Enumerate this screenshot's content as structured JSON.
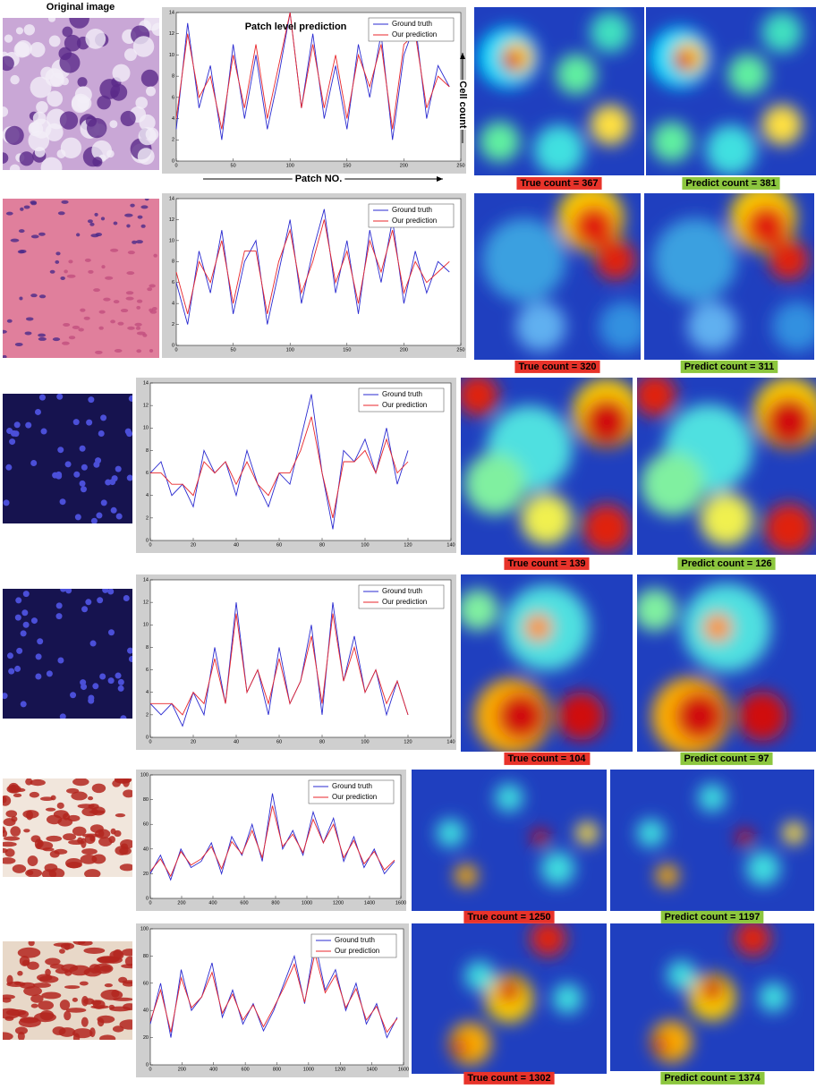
{
  "header_label": "Original image",
  "chart_data": [
    {
      "type": "line",
      "title": "Patch level prediction",
      "x_label": "Patch NO.",
      "y_label": "Cell count",
      "x": [
        0,
        10,
        20,
        30,
        40,
        50,
        60,
        70,
        80,
        90,
        100,
        110,
        120,
        130,
        140,
        150,
        160,
        170,
        180,
        190,
        200,
        210,
        220,
        230,
        240
      ],
      "xlim": [
        0,
        250
      ],
      "xticks": [
        0,
        50,
        100,
        150,
        200,
        250
      ],
      "ylim": [
        0,
        14
      ],
      "yticks": [
        0,
        2,
        4,
        6,
        8,
        10,
        12,
        14
      ],
      "series": [
        {
          "name": "Ground truth",
          "color": "#2a2ad0",
          "values": [
            3,
            13,
            5,
            9,
            2,
            11,
            4,
            10,
            3,
            8,
            14,
            5,
            12,
            4,
            9,
            3,
            11,
            6,
            12,
            2,
            10,
            13,
            4,
            9,
            7
          ]
        },
        {
          "name": "Our prediction",
          "color": "#e8262b",
          "values": [
            4,
            12,
            6,
            8,
            3,
            10,
            5,
            11,
            4,
            9,
            14,
            5,
            11,
            5,
            10,
            4,
            10,
            7,
            11,
            3,
            11,
            12,
            5,
            8,
            7
          ]
        }
      ]
    },
    {
      "type": "line",
      "x": [
        0,
        10,
        20,
        30,
        40,
        50,
        60,
        70,
        80,
        90,
        100,
        110,
        120,
        130,
        140,
        150,
        160,
        170,
        180,
        190,
        200,
        210,
        220,
        230,
        240
      ],
      "xlim": [
        0,
        250
      ],
      "xticks": [
        0,
        50,
        100,
        150,
        200,
        250
      ],
      "ylim": [
        0,
        14
      ],
      "yticks": [
        0,
        2,
        4,
        6,
        8,
        10,
        12,
        14
      ],
      "series": [
        {
          "name": "Ground truth",
          "color": "#2a2ad0",
          "values": [
            6,
            2,
            9,
            5,
            11,
            3,
            8,
            10,
            2,
            7,
            12,
            4,
            9,
            13,
            5,
            10,
            3,
            11,
            6,
            12,
            4,
            9,
            5,
            8,
            7
          ]
        },
        {
          "name": "Our prediction",
          "color": "#e8262b",
          "values": [
            7,
            3,
            8,
            6,
            10,
            4,
            9,
            9,
            3,
            8,
            11,
            5,
            8,
            12,
            6,
            9,
            4,
            10,
            7,
            11,
            5,
            8,
            6,
            7,
            8
          ]
        }
      ]
    },
    {
      "type": "line",
      "x": [
        0,
        5,
        10,
        15,
        20,
        25,
        30,
        35,
        40,
        45,
        50,
        55,
        60,
        65,
        70,
        75,
        80,
        85,
        90,
        95,
        100,
        105,
        110,
        115,
        120
      ],
      "xlim": [
        0,
        140
      ],
      "xticks": [
        0,
        20,
        40,
        60,
        80,
        100,
        120,
        140
      ],
      "ylim": [
        0,
        14
      ],
      "yticks": [
        0,
        2,
        4,
        6,
        8,
        10,
        12,
        14
      ],
      "series": [
        {
          "name": "Ground truth",
          "color": "#2a2ad0",
          "values": [
            6,
            7,
            4,
            5,
            3,
            8,
            6,
            7,
            4,
            8,
            5,
            3,
            6,
            5,
            9,
            13,
            6,
            1,
            8,
            7,
            9,
            6,
            10,
            5,
            8
          ]
        },
        {
          "name": "Our prediction",
          "color": "#e8262b",
          "values": [
            6,
            6,
            5,
            5,
            4,
            7,
            6,
            7,
            5,
            7,
            5,
            4,
            6,
            6,
            8,
            11,
            6,
            2,
            7,
            7,
            8,
            6,
            9,
            6,
            7
          ]
        }
      ]
    },
    {
      "type": "line",
      "x": [
        0,
        5,
        10,
        15,
        20,
        25,
        30,
        35,
        40,
        45,
        50,
        55,
        60,
        65,
        70,
        75,
        80,
        85,
        90,
        95,
        100,
        105,
        110,
        115,
        120
      ],
      "xlim": [
        0,
        140
      ],
      "xticks": [
        0,
        20,
        40,
        60,
        80,
        100,
        120,
        140
      ],
      "ylim": [
        0,
        14
      ],
      "yticks": [
        0,
        2,
        4,
        6,
        8,
        10,
        12,
        14
      ],
      "series": [
        {
          "name": "Ground truth",
          "color": "#2a2ad0",
          "values": [
            3,
            2,
            3,
            1,
            4,
            2,
            8,
            3,
            12,
            4,
            6,
            2,
            8,
            3,
            5,
            10,
            2,
            12,
            5,
            9,
            4,
            6,
            2,
            5,
            2
          ]
        },
        {
          "name": "Our prediction",
          "color": "#e8262b",
          "values": [
            3,
            3,
            3,
            2,
            4,
            3,
            7,
            3,
            11,
            4,
            6,
            3,
            7,
            3,
            5,
            9,
            3,
            11,
            5,
            8,
            4,
            6,
            3,
            5,
            2
          ]
        }
      ]
    },
    {
      "type": "line",
      "x": [
        0,
        65,
        130,
        195,
        260,
        325,
        390,
        455,
        520,
        585,
        650,
        715,
        780,
        845,
        910,
        975,
        1040,
        1105,
        1170,
        1235,
        1300,
        1365,
        1430,
        1495,
        1560
      ],
      "xlim": [
        0,
        1600
      ],
      "xticks": [
        0,
        200,
        400,
        600,
        800,
        1000,
        1200,
        1400,
        1600
      ],
      "ylim": [
        0,
        100
      ],
      "yticks": [
        0,
        20,
        40,
        60,
        80,
        100
      ],
      "series": [
        {
          "name": "Ground truth",
          "color": "#2a2ad0",
          "values": [
            20,
            35,
            15,
            40,
            25,
            30,
            45,
            20,
            50,
            35,
            60,
            30,
            85,
            40,
            55,
            35,
            70,
            45,
            65,
            30,
            50,
            25,
            40,
            20,
            30
          ]
        },
        {
          "name": "Our prediction",
          "color": "#e8262b",
          "values": [
            22,
            32,
            18,
            38,
            27,
            32,
            42,
            24,
            46,
            36,
            55,
            33,
            75,
            42,
            52,
            37,
            64,
            45,
            60,
            33,
            47,
            28,
            38,
            23,
            31
          ]
        }
      ]
    },
    {
      "type": "line",
      "x": [
        0,
        65,
        130,
        195,
        260,
        325,
        390,
        455,
        520,
        585,
        650,
        715,
        780,
        845,
        910,
        975,
        1040,
        1105,
        1170,
        1235,
        1300,
        1365,
        1430,
        1495,
        1560
      ],
      "xlim": [
        0,
        1600
      ],
      "xticks": [
        0,
        200,
        400,
        600,
        800,
        1000,
        1200,
        1400,
        1600
      ],
      "ylim": [
        0,
        100
      ],
      "yticks": [
        0,
        20,
        40,
        60,
        80,
        100
      ],
      "series": [
        {
          "name": "Ground truth",
          "color": "#2a2ad0",
          "values": [
            30,
            60,
            20,
            70,
            40,
            50,
            75,
            35,
            55,
            30,
            45,
            25,
            40,
            60,
            80,
            45,
            90,
            55,
            70,
            40,
            60,
            30,
            45,
            20,
            35
          ]
        },
        {
          "name": "Our prediction",
          "color": "#e8262b",
          "values": [
            32,
            55,
            24,
            64,
            42,
            50,
            68,
            38,
            52,
            33,
            44,
            28,
            42,
            57,
            74,
            46,
            82,
            53,
            66,
            42,
            56,
            33,
            43,
            24,
            34
          ]
        }
      ]
    }
  ],
  "panels": [
    {
      "true_count": "True count = 367",
      "predict_count": "Predict count = 381"
    },
    {
      "true_count": "True count = 320",
      "predict_count": "Predict count = 311"
    },
    {
      "true_count": "True count = 139",
      "predict_count": "Predict count = 126"
    },
    {
      "true_count": "True count = 104",
      "predict_count": "Predict count = 97"
    },
    {
      "true_count": "True count = 1250",
      "predict_count": "Predict count = 1197"
    },
    {
      "true_count": "True count = 1302",
      "predict_count": "Predict count = 1374"
    }
  ]
}
